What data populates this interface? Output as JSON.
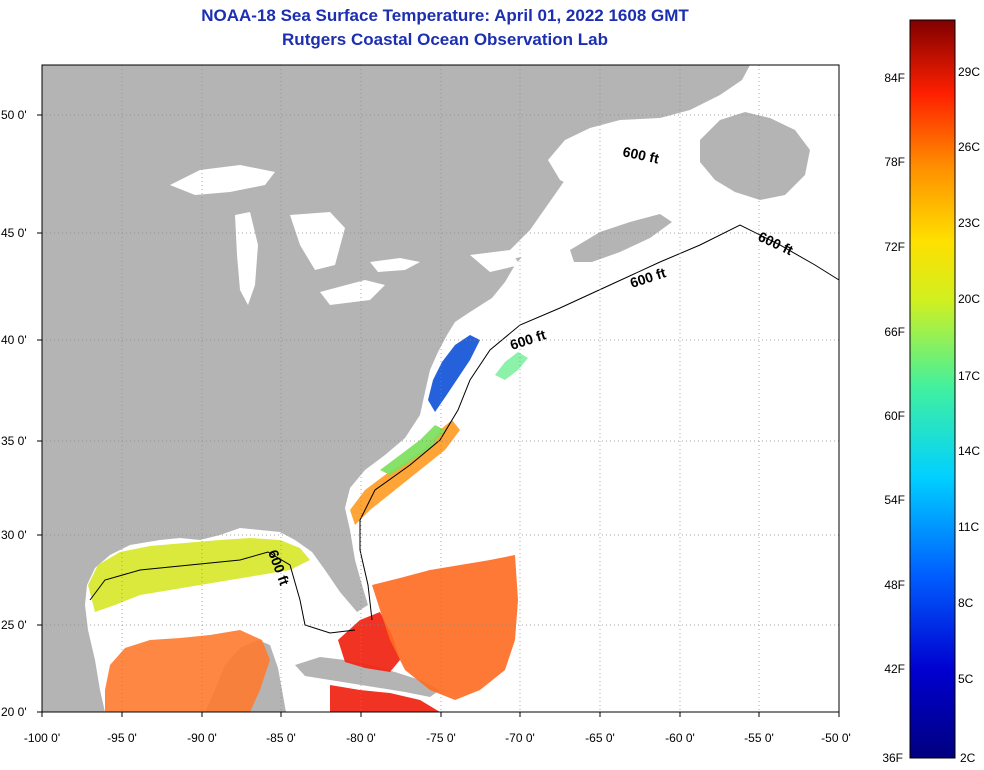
{
  "header": {
    "title": "NOAA-18 Sea Surface Temperature:  April 01, 2022 1608 GMT",
    "subtitle": "Rutgers Coastal Ocean Observation Lab"
  },
  "axes": {
    "lon_labels": [
      "-100 0'",
      "-95 0'",
      "-90 0'",
      "-85 0'",
      "-80 0'",
      "-75 0'",
      "-70 0'",
      "-65 0'",
      "-60 0'",
      "-55 0'",
      "-50 0'"
    ],
    "lat_labels": [
      "20 0'",
      "25 0'",
      "30 0'",
      "35 0'",
      "40 0'",
      "45 0'",
      "50 0'"
    ]
  },
  "contour_labels": [
    "600 ft",
    "600 ft",
    "600 ft",
    "600 ft",
    "600 ft"
  ],
  "colorbar": {
    "f_labels": [
      "36F",
      "42F",
      "48F",
      "54F",
      "60F",
      "66F",
      "72F",
      "78F",
      "84F"
    ],
    "c_labels": [
      "2C",
      "5C",
      "8C",
      "11C",
      "14C",
      "17C",
      "20C",
      "23C",
      "26C",
      "29C"
    ]
  },
  "colors": {
    "land": "#b4b4b4",
    "ocean": "#ffffff",
    "title": "#1c2fb0",
    "grid": "#888888"
  }
}
